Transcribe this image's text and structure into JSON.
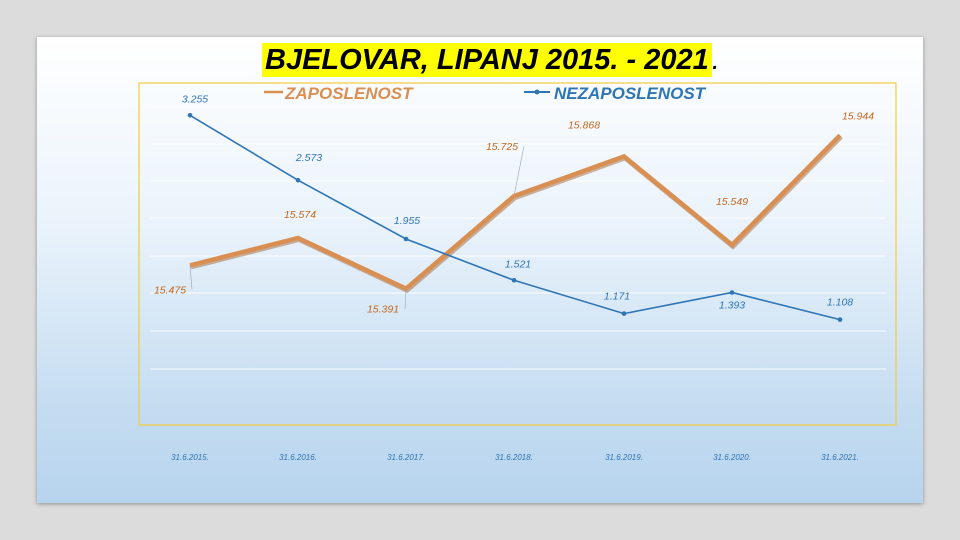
{
  "title": "BJELOVAR, LIPANJ 2015. - 2021",
  "title_suffix": ".",
  "colors": {
    "zaposlenost": "#d98f52",
    "nezaposlenost": "#2e75b6",
    "frame": "#f2cc3a",
    "title_bg": "#ffff00"
  },
  "chart_data": {
    "type": "line",
    "title": "BJELOVAR, LIPANJ 2015. - 2021.",
    "categories": [
      "31.6.2015.",
      "31.6.2016.",
      "31.6.2017.",
      "31.6.2018.",
      "31.6.2019.",
      "31.6.2020.",
      "31.6.2021."
    ],
    "series": [
      {
        "name": "ZAPOSLENOST",
        "labels": [
          "15.475",
          "15.574",
          "15.391",
          "15.725",
          "15.868",
          "15.549",
          "15.944"
        ],
        "values": [
          15475,
          15574,
          15391,
          15725,
          15868,
          15549,
          15944
        ]
      },
      {
        "name": "NEZAPOSLENOST",
        "labels": [
          "3.255",
          "2.573",
          "1.955",
          "1.521",
          "1.171",
          "1.393",
          "1.108"
        ],
        "values": [
          3255,
          2573,
          1955,
          1521,
          1171,
          1393,
          1108
        ]
      }
    ],
    "grid": true,
    "legend": "top",
    "secondary_axis": true
  }
}
